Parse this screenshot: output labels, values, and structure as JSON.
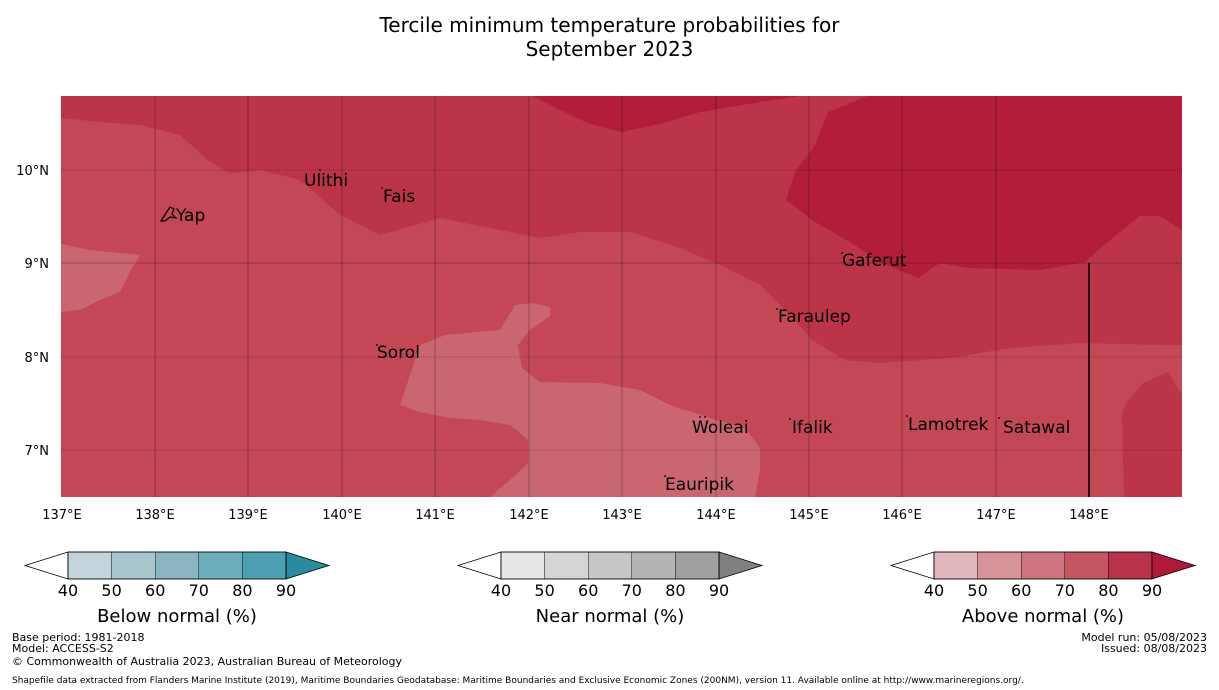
{
  "title": {
    "line1": "Tercile minimum temperature probabilities for",
    "line2": "September 2023"
  },
  "map": {
    "lon_ticks": [
      "137°E",
      "138°E",
      "139°E",
      "140°E",
      "141°E",
      "142°E",
      "143°E",
      "144°E",
      "145°E",
      "146°E",
      "147°E",
      "148°E"
    ],
    "lat_ticks": [
      "10°N",
      "9°N",
      "8°N",
      "7°N"
    ],
    "places": [
      {
        "name": "Ulithi",
        "lon": 139.6,
        "lat": 10.0
      },
      {
        "name": "Fais",
        "lon": 140.4,
        "lat": 9.8
      },
      {
        "name": "Yap",
        "lon": 138.1,
        "lat": 9.5
      },
      {
        "name": "Gaferut",
        "lon": 145.3,
        "lat": 9.2
      },
      {
        "name": "Faraulep",
        "lon": 144.6,
        "lat": 8.6
      },
      {
        "name": "Sorol",
        "lon": 140.4,
        "lat": 8.1
      },
      {
        "name": "Woleai",
        "lon": 143.9,
        "lat": 7.4
      },
      {
        "name": "Ifalik",
        "lon": 144.7,
        "lat": 7.4
      },
      {
        "name": "Lamotrek",
        "lon": 146.0,
        "lat": 7.5
      },
      {
        "name": "Satawal",
        "lon": 147.0,
        "lat": 7.4
      },
      {
        "name": "Eauripik",
        "lon": 143.4,
        "lat": 6.7
      }
    ],
    "colors": {
      "above_40_50": "#ca6670",
      "above_50_60": "#c4515e",
      "above_60_70": "#c34755",
      "above_70_80": "#bc3447",
      "above_80_90": "#b21d3a"
    }
  },
  "colorbars": [
    {
      "title": "Below normal (%)",
      "ticks": [
        "40",
        "50",
        "60",
        "70",
        "80",
        "90"
      ],
      "colors": [
        "#ffffff",
        "#c3d4da",
        "#a8c7cd",
        "#8ab6c2",
        "#6badbb",
        "#4ca0b1",
        "#2c8a9e"
      ]
    },
    {
      "title": "Near normal (%)",
      "ticks": [
        "40",
        "50",
        "60",
        "70",
        "80",
        "90"
      ],
      "colors": [
        "#ffffff",
        "#e6e6e6",
        "#d5d5d5",
        "#c6c6c6",
        "#b4b4b4",
        "#a0a0a0",
        "#808080"
      ]
    },
    {
      "title": "Above normal (%)",
      "ticks": [
        "40",
        "50",
        "60",
        "70",
        "80",
        "90"
      ],
      "colors": [
        "#ffffff",
        "#e1b7bd",
        "#d7939a",
        "#ce747e",
        "#c45662",
        "#b83347",
        "#ad1a3a"
      ]
    }
  ],
  "footer": {
    "base_period": "Base period: 1981-2018",
    "model": "Model: ACCESS-S2",
    "copyright": "© Commonwealth of Australia 2023, Australian Bureau of Meteorology",
    "model_run": "Model run: 05/08/2023",
    "issued": "Issued: 08/08/2023",
    "shapefile": "Shapefile data extracted from Flanders Marine Institute (2019), Maritime Boundaries Geodatabase: Maritime Boundaries and Exclusive Economic Zones (200NM), version 11. Available online at http://www.marineregions.org/."
  }
}
